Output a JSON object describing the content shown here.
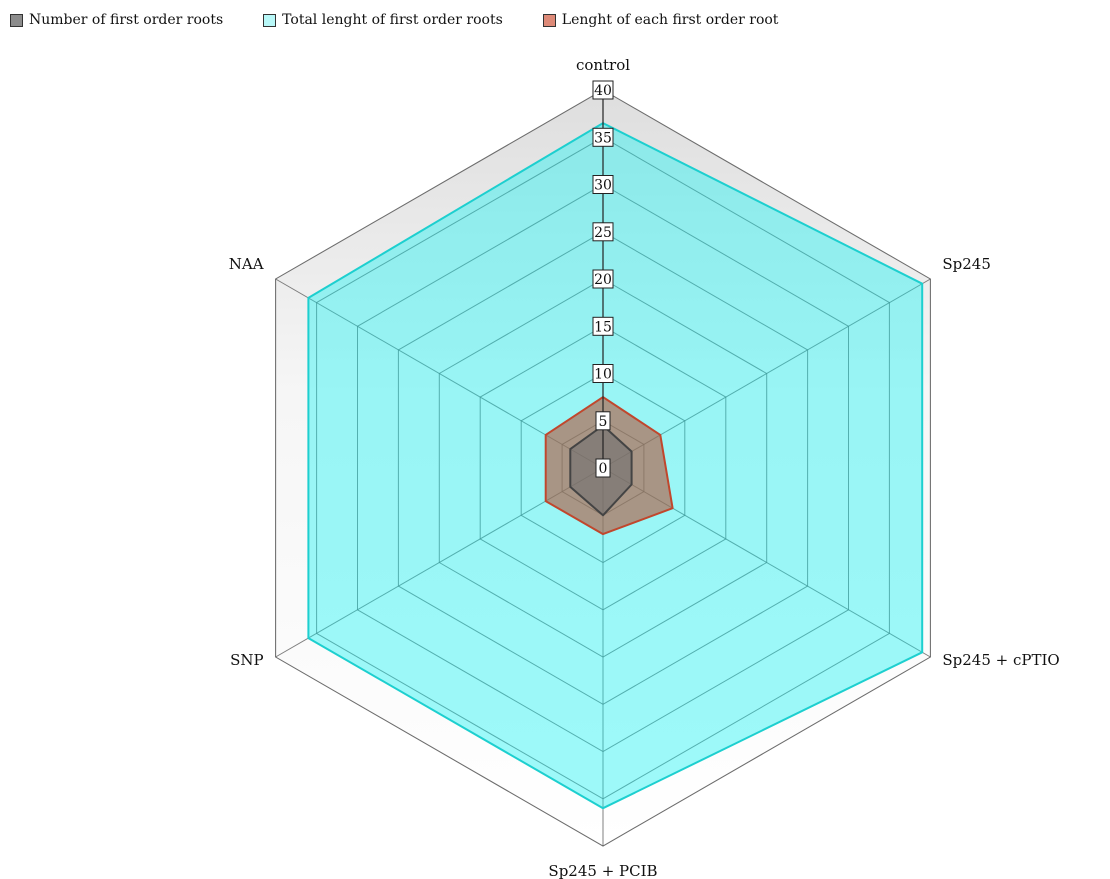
{
  "chart_data": {
    "type": "radar",
    "categories": [
      "control",
      "Sp245",
      "Sp245 + cPTIO",
      "Sp245 + PCIB",
      "SNP",
      "NAA"
    ],
    "ticks": [
      0,
      5,
      10,
      15,
      20,
      25,
      30,
      35,
      40
    ],
    "rmax": 40,
    "series": [
      {
        "name": "Number of first order roots",
        "values": [
          4.5,
          3.5,
          3.5,
          5,
          4,
          4
        ],
        "fill": "#6f6f6f",
        "stroke": "#444444",
        "swatch": "#8c8c8c"
      },
      {
        "name": "Total lenght of first order roots",
        "values": [
          36.5,
          39,
          39,
          36,
          36,
          36
        ],
        "fill": "#19f2f2",
        "stroke": "#1dcfcf",
        "swatch": "#b8f8f8"
      },
      {
        "name": "Lenght of each first order root",
        "values": [
          7.5,
          7,
          8.5,
          7,
          7,
          7
        ],
        "fill": "#b3553a",
        "stroke": "#c0472d",
        "swatch": "#de8a78"
      }
    ],
    "legend_position": "top-left"
  }
}
